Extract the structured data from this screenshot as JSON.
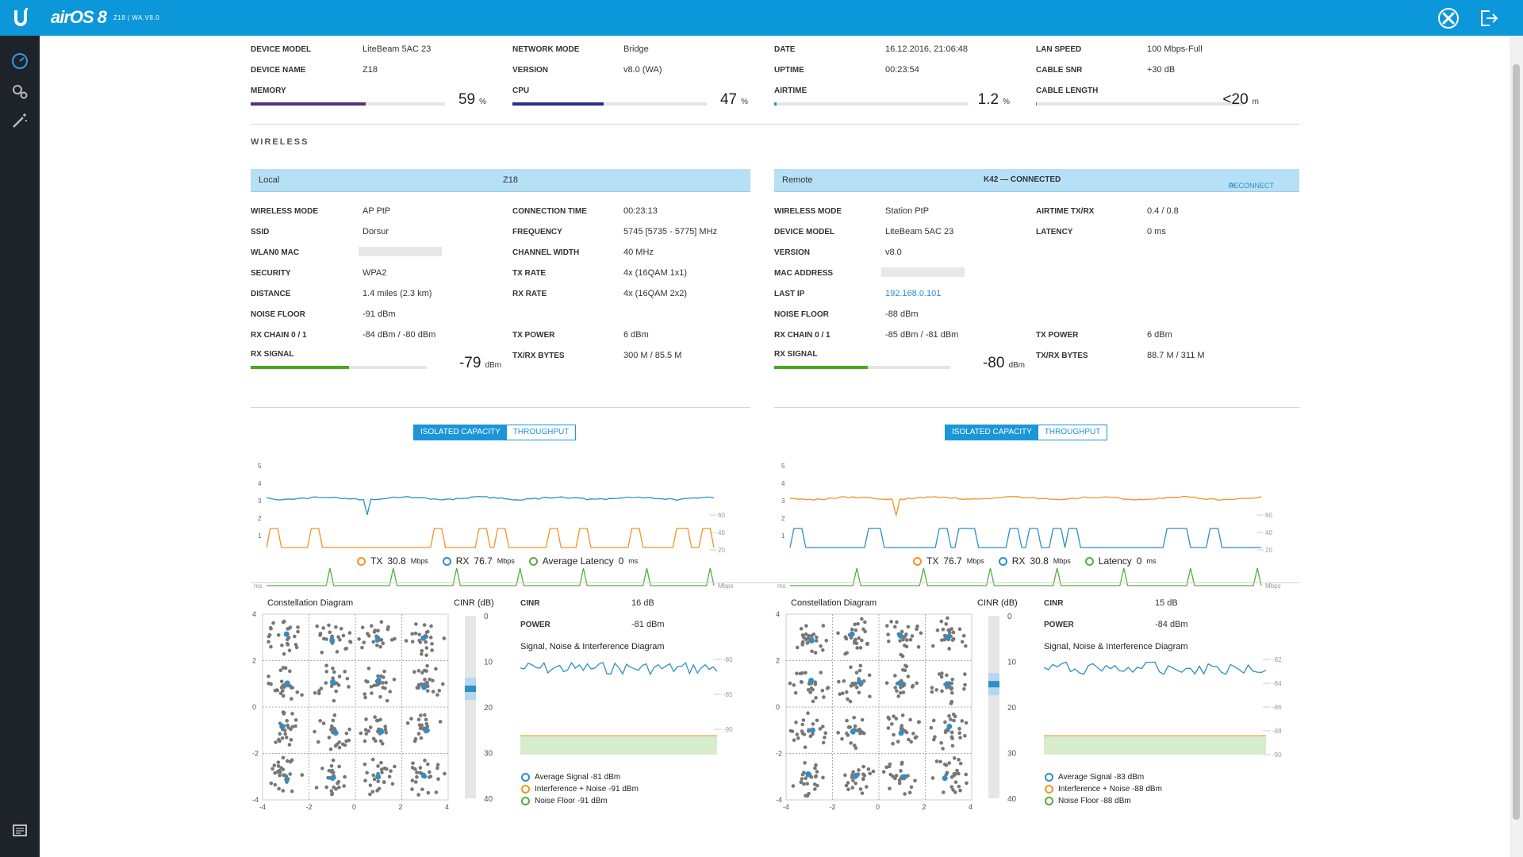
{
  "header": {
    "brand": "airOS 8",
    "subtitle": "Z18 | WA.V8.0"
  },
  "colors": {
    "topbar": "#0b97d9",
    "sidebar": "#1e2229",
    "tx": "#f39321",
    "rx": "#2d8fc6",
    "latency": "#5aaa45",
    "memory": "#5a2d7c",
    "cpu": "#2d2d8a",
    "signal": "#4aa61a"
  },
  "icons": {
    "logo": "ubiquiti-u-icon",
    "tools": "tools-icon",
    "logout": "logout-icon",
    "dashboard": "dashboard-icon",
    "settings": "settings-gears-icon",
    "wizard": "magic-wand-icon",
    "console": "console-icon"
  },
  "status": {
    "device_model": {
      "label": "DEVICE MODEL",
      "value": "LiteBeam 5AC 23"
    },
    "device_name": {
      "label": "DEVICE NAME",
      "value": "Z18"
    },
    "memory": {
      "label": "MEMORY",
      "value": "59",
      "unit": "%",
      "percent": 59
    },
    "network_mode": {
      "label": "NETWORK MODE",
      "value": "Bridge"
    },
    "version": {
      "label": "VERSION",
      "value": "v8.0 (WA)"
    },
    "cpu": {
      "label": "CPU",
      "value": "47",
      "unit": "%",
      "percent": 47
    },
    "date": {
      "label": "DATE",
      "value": "16.12.2016, 21:06:48"
    },
    "uptime": {
      "label": "UPTIME",
      "value": "00:23:54"
    },
    "airtime": {
      "label": "AIRTIME",
      "value": "1.2",
      "unit": "%",
      "percent": 1.2
    },
    "lan_speed": {
      "label": "LAN SPEED",
      "value": "100 Mbps-Full"
    },
    "cable_snr": {
      "label": "CABLE SNR",
      "value": "+30 dB"
    },
    "cable_length": {
      "label": "CABLE LENGTH",
      "value": "<20",
      "unit": "m",
      "percent": 0
    }
  },
  "wireless": {
    "title": "WIRELESS",
    "local": {
      "head_left": "Local",
      "head_center": "Z18",
      "col1": [
        {
          "label": "WIRELESS MODE",
          "value": "AP PtP"
        },
        {
          "label": "SSID",
          "value": "Dorsur"
        },
        {
          "label": "WLAN0 MAC",
          "value": ""
        },
        {
          "label": "SECURITY",
          "value": "WPA2"
        },
        {
          "label": "DISTANCE",
          "value": "1.4 miles (2.3 km)"
        },
        {
          "label": "NOISE FLOOR",
          "value": "-91 dBm"
        },
        {
          "label": "RX CHAIN 0 / 1",
          "value": "-84 dBm / -80 dBm"
        }
      ],
      "col2": [
        {
          "label": "CONNECTION TIME",
          "value": "00:23:13"
        },
        {
          "label": "FREQUENCY",
          "value": "5745 [5735 - 5775] MHz"
        },
        {
          "label": "CHANNEL WIDTH",
          "value": "40 MHz"
        },
        {
          "label": "TX RATE",
          "value": "4x (16QAM 1x1)"
        },
        {
          "label": "RX RATE",
          "value": "4x (16QAM 2x2)"
        },
        {
          "label": "",
          "value": ""
        },
        {
          "label": "TX POWER",
          "value": "6 dBm"
        },
        {
          "label": "TX/RX BYTES",
          "value": "300 M / 85.5 M"
        }
      ],
      "rx_signal": {
        "label": "RX SIGNAL",
        "value": "-79",
        "unit": "dBm",
        "percent": 56
      }
    },
    "remote": {
      "head_left": "Remote",
      "head_center": "K42 — CONNECTED",
      "reconnect": "RECONNECT",
      "col1": [
        {
          "label": "WIRELESS MODE",
          "value": "Station PtP"
        },
        {
          "label": "DEVICE MODEL",
          "value": "LiteBeam 5AC 23"
        },
        {
          "label": "VERSION",
          "value": "v8.0"
        },
        {
          "label": "MAC ADDRESS",
          "value": ""
        },
        {
          "label": "LAST IP",
          "value": "192.168.0.101"
        },
        {
          "label": "NOISE FLOOR",
          "value": "-88 dBm"
        },
        {
          "label": "RX CHAIN 0 / 1",
          "value": "-85 dBm / -81 dBm"
        }
      ],
      "col2": [
        {
          "label": "AIRTIME TX/RX",
          "value": "0.4 / 0.8"
        },
        {
          "label": "LATENCY",
          "value": "0 ms"
        },
        {
          "label": "",
          "value": ""
        },
        {
          "label": "",
          "value": ""
        },
        {
          "label": "",
          "value": ""
        },
        {
          "label": "",
          "value": ""
        },
        {
          "label": "TX POWER",
          "value": "6 dBm"
        },
        {
          "label": "TX/RX BYTES",
          "value": "88.7 M / 311 M"
        }
      ],
      "rx_signal": {
        "label": "RX SIGNAL",
        "value": "-80",
        "unit": "dBm",
        "percent": 53
      }
    }
  },
  "capacity": {
    "local": {
      "tabs": [
        "ISOLATED CAPACITY",
        "THROUGHPUT"
      ],
      "left_ticks": [
        "5",
        "4",
        "3",
        "2",
        "1"
      ],
      "left_unit": "ms",
      "right_ticks": [
        "60",
        "40",
        "20"
      ],
      "right_unit": "Mbps",
      "legend": [
        {
          "name": "TX",
          "value": "30.8",
          "unit": "Mbps",
          "color": "#f39321"
        },
        {
          "name": "RX",
          "value": "76.7",
          "unit": "Mbps",
          "color": "#2d8fc6"
        },
        {
          "name": "Average Latency",
          "value": "0",
          "unit": "ms",
          "color": "#5aaa45"
        }
      ]
    },
    "remote": {
      "tabs": [
        "ISOLATED CAPACITY",
        "THROUGHPUT"
      ],
      "left_ticks": [
        "5",
        "4",
        "3",
        "2",
        "1"
      ],
      "left_unit": "ms",
      "right_ticks": [
        "60",
        "40",
        "20"
      ],
      "right_unit": "Mbps",
      "legend": [
        {
          "name": "TX",
          "value": "76.7",
          "unit": "Mbps",
          "color": "#f39321"
        },
        {
          "name": "RX",
          "value": "30.8",
          "unit": "Mbps",
          "color": "#2d8fc6"
        },
        {
          "name": "Latency",
          "value": "0",
          "unit": "ms",
          "color": "#5aaa45"
        }
      ]
    }
  },
  "rf": {
    "local": {
      "constellation_title": "Constellation Diagram",
      "cinr_axis_title": "CINR (dB)",
      "axis_ticks": [
        "-4",
        "-2",
        "0",
        "2",
        "4"
      ],
      "cinr_ticks": [
        "0",
        "10",
        "20",
        "30",
        "40"
      ],
      "cinr_value": 16,
      "cinr": {
        "label": "CINR",
        "value": "16 dB"
      },
      "power": {
        "label": "POWER",
        "value": "-81 dBm"
      },
      "sni_title": "Signal, Noise & Interference Diagram",
      "sni_ticks": [
        "-80",
        "-85",
        "-90"
      ],
      "sni_legend": [
        {
          "text": "Average Signal -81 dBm",
          "color": "#2d8fc6"
        },
        {
          "text": "Interference + Noise -91 dBm",
          "color": "#f39321"
        },
        {
          "text": "Noise Floor -91 dBm",
          "color": "#5aaa45"
        }
      ]
    },
    "remote": {
      "constellation_title": "Constellation Diagram",
      "cinr_axis_title": "CINR (dB)",
      "axis_ticks": [
        "-4",
        "-2",
        "0",
        "2",
        "4"
      ],
      "cinr_ticks": [
        "0",
        "10",
        "20",
        "30",
        "40"
      ],
      "cinr_value": 15,
      "cinr": {
        "label": "CINR",
        "value": "15 dB"
      },
      "power": {
        "label": "POWER",
        "value": "-84 dBm"
      },
      "sni_title": "Signal, Noise & Interference Diagram",
      "sni_ticks": [
        "-82",
        "-84",
        "-86",
        "-88",
        "-90"
      ],
      "sni_legend": [
        {
          "text": "Average Signal -83 dBm",
          "color": "#2d8fc6"
        },
        {
          "text": "Interference + Noise -88 dBm",
          "color": "#f39321"
        },
        {
          "text": "Noise Floor -88 dBm",
          "color": "#5aaa45"
        }
      ]
    }
  }
}
